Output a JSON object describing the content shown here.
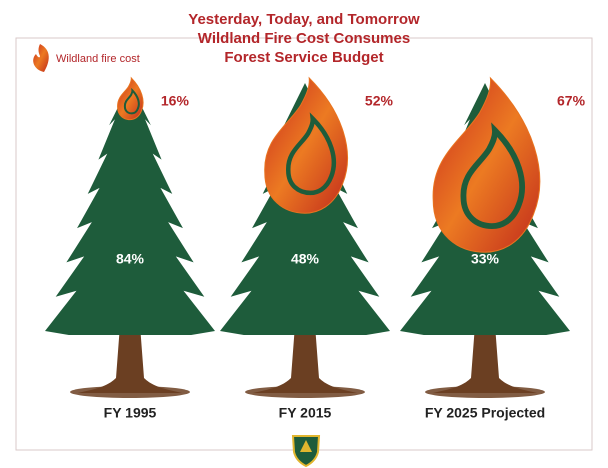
{
  "chart_data": {
    "type": "tree",
    "title": [
      "Yesterday, Today, and Tomorrow",
      "Wildland Fire Cost Consumes",
      "Forest Service Budget"
    ],
    "categories": [
      "FY 1995",
      "FY 2015",
      "FY 2025 Projected"
    ],
    "series": [
      {
        "name": "Wildland fire cost",
        "color": "#e8731f",
        "values": [
          16,
          52,
          67
        ],
        "value_labels": [
          "16%",
          "52%",
          "67%"
        ]
      },
      {
        "color": "#1e5c3b",
        "values": [
          84,
          48,
          33
        ],
        "value_labels": [
          "84%",
          "48%",
          "33%"
        ]
      }
    ],
    "trunk_color": "#6b3f22",
    "title_color": "#b3262a"
  }
}
